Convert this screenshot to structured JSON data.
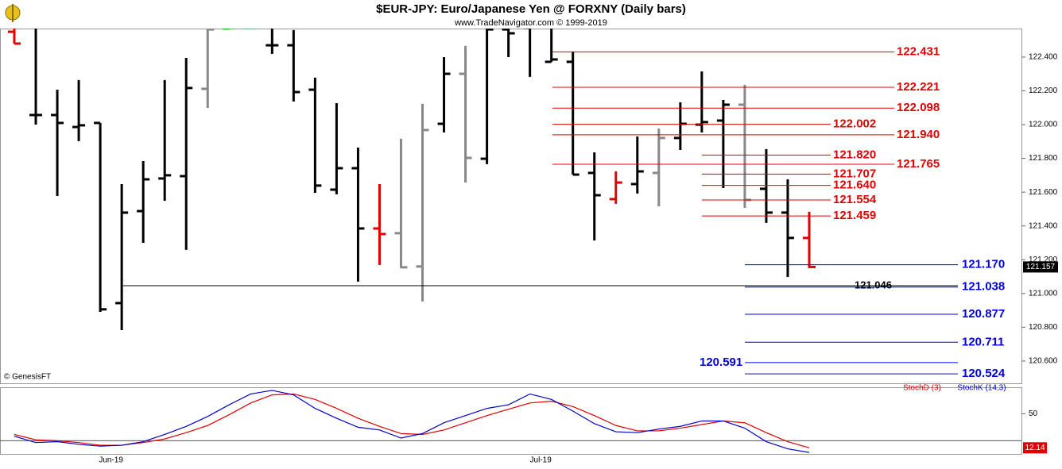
{
  "chart_data": [
    {
      "type": "ohlc",
      "title": "$EUR-JPY:  Euro/Japanese Yen @ FORXNY  (Daily bars)",
      "subtitle": "www.TradeNavigator.com © 1999-2019",
      "source": "© GenesisFT",
      "categories": [
        null,
        null,
        null,
        null,
        null,
        "Jun-19",
        null,
        null,
        null,
        null,
        null,
        null,
        null,
        null,
        null,
        null,
        null,
        null,
        null,
        null,
        null,
        null,
        null,
        null,
        null,
        "Jul-19",
        null,
        null,
        null,
        null,
        null,
        null,
        null,
        null,
        null,
        null,
        null,
        null
      ],
      "open": [
        122.55,
        122.057,
        122.057,
        121.986,
        122.01,
        120.943,
        121.488,
        121.681,
        121.695,
        122.212,
        122.569,
        122.574,
        122.47,
        122.47,
        122.207,
        121.615,
        121.742,
        121.385,
        121.357,
        121.16,
        122.005,
        122.301,
        121.798,
        122.564,
        122.574,
        122.372,
        122.372,
        121.714,
        121.559,
        121.648,
        121.714,
        121.921,
        122.0,
        122.024,
        122.118,
        121.62,
        121.479,
        121.329
      ],
      "high": [
        122.635,
        122.644,
        122.207,
        122.264,
        122.01,
        121.648,
        121.784,
        122.264,
        122.395,
        122.644,
        122.644,
        122.644,
        122.569,
        122.56,
        122.278,
        122.127,
        121.864,
        121.648,
        121.916,
        122.123,
        122.4,
        122.466,
        122.644,
        122.644,
        122.644,
        122.644,
        122.433,
        121.836,
        121.723,
        121.93,
        121.977,
        122.132,
        122.315,
        122.146,
        122.236,
        121.855,
        121.676,
        121.484
      ],
      "low": [
        122.48,
        122.0,
        121.577,
        121.902,
        120.891,
        120.783,
        121.3,
        121.549,
        121.258,
        122.099,
        122.569,
        122.569,
        122.419,
        122.137,
        121.596,
        121.587,
        121.07,
        121.169,
        121.15,
        120.953,
        121.954,
        121.657,
        121.766,
        122.4,
        122.283,
        122.372,
        121.704,
        121.314,
        121.531,
        121.592,
        121.516,
        121.85,
        121.954,
        121.624,
        121.507,
        121.418,
        121.098,
        121.15
      ],
      "close": [
        122.48,
        122.057,
        122.01,
        121.996,
        120.906,
        121.479,
        121.676,
        121.7,
        122.217,
        122.564,
        122.574,
        122.574,
        122.47,
        122.193,
        121.639,
        121.742,
        121.385,
        121.352,
        121.155,
        121.968,
        122.301,
        121.803,
        122.564,
        122.541,
        122.597,
        122.386,
        121.704,
        121.582,
        121.657,
        121.723,
        121.921,
        122.005,
        122.015,
        122.118,
        121.554,
        121.479,
        121.329,
        121.157
      ],
      "colors": [
        "#e00000",
        "#000000",
        "#000000",
        "#000000",
        "#000000",
        "#000000",
        "#000000",
        "#000000",
        "#000000",
        "#888888",
        "#00cc33",
        "#00cc33",
        "#000000",
        "#000000",
        "#000000",
        "#000000",
        "#000000",
        "#e00000",
        "#888888",
        "#888888",
        "#000000",
        "#888888",
        "#000000",
        "#000000",
        "#000000",
        "#000000",
        "#000000",
        "#000000",
        "#e00000",
        "#000000",
        "#888888",
        "#000000",
        "#000000",
        "#000000",
        "#888888",
        "#000000",
        "#000000",
        "#e00000"
      ],
      "ylim": [
        120.468,
        122.569
      ],
      "yticks": [
        {
          "value": 120.6,
          "label": "120.600"
        },
        {
          "value": 120.8,
          "label": "120.800"
        },
        {
          "value": 121.0,
          "label": "121.000"
        },
        {
          "value": 121.2,
          "label": "121.200"
        },
        {
          "value": 121.4,
          "label": "121.400"
        },
        {
          "value": 121.6,
          "label": "121.600"
        },
        {
          "value": 121.8,
          "label": "121.800"
        },
        {
          "value": 122.0,
          "label": "122.000"
        },
        {
          "value": 122.2,
          "label": "122.200"
        },
        {
          "value": 122.4,
          "label": "122.400"
        }
      ],
      "levels": [
        {
          "value": 122.431,
          "label": "122.431",
          "color": "#e00000"
        },
        {
          "value": 122.221,
          "label": "122.221",
          "color": "#e00000"
        },
        {
          "value": 122.098,
          "label": "122.098",
          "color": "#e00000"
        },
        {
          "value": 122.002,
          "label": "122.002",
          "color": "#e00000"
        },
        {
          "value": 121.94,
          "label": "121.940",
          "color": "#e00000"
        },
        {
          "value": 121.82,
          "label": "121.820",
          "color": "#e00000"
        },
        {
          "value": 121.765,
          "label": "121.765",
          "color": "#e00000"
        },
        {
          "value": 121.707,
          "label": "121.707",
          "color": "#e00000"
        },
        {
          "value": 121.64,
          "label": "121.640",
          "color": "#e00000"
        },
        {
          "value": 121.554,
          "label": "121.554",
          "color": "#e00000"
        },
        {
          "value": 121.459,
          "label": "121.459",
          "color": "#e00000"
        },
        {
          "value": 121.17,
          "label": "121.170",
          "color": "#0000dd"
        },
        {
          "value": 121.046,
          "label": "121.046",
          "color": "#000000"
        },
        {
          "value": 121.038,
          "label": "121.038",
          "color": "#0000dd"
        },
        {
          "value": 120.877,
          "label": "120.877",
          "color": "#0000dd"
        },
        {
          "value": 120.711,
          "label": "120.711",
          "color": "#0000dd"
        },
        {
          "value": 120.591,
          "label": "120.591",
          "color": "#0000dd"
        },
        {
          "value": 120.524,
          "label": "120.524",
          "color": "#0000dd"
        }
      ]
    },
    {
      "type": "line",
      "series": [
        {
          "name": "StochD (3)",
          "color": "#e00000",
          "values": [
            27,
            21,
            20,
            18,
            15,
            15,
            18,
            22,
            29,
            37,
            49,
            62,
            71,
            72,
            66,
            56,
            45,
            36,
            28,
            27,
            32,
            40,
            48,
            55,
            62,
            64,
            58,
            48,
            37,
            31,
            31,
            34,
            38,
            42,
            40,
            29,
            19,
            12.14
          ]
        },
        {
          "name": "StochK (14,3)",
          "color": "#0000cc",
          "values": [
            25,
            18,
            19,
            16,
            14,
            15,
            19,
            27,
            36,
            47,
            60,
            72,
            76,
            71,
            56,
            45,
            35,
            32,
            23,
            28,
            40,
            48,
            56,
            60,
            72,
            66,
            53,
            39,
            30,
            29,
            33,
            36,
            42,
            42,
            34,
            19,
            11,
            7
          ]
        }
      ],
      "ylim": [
        5,
        80
      ],
      "yticks": [
        50
      ],
      "hlines": [
        20
      ]
    }
  ]
}
